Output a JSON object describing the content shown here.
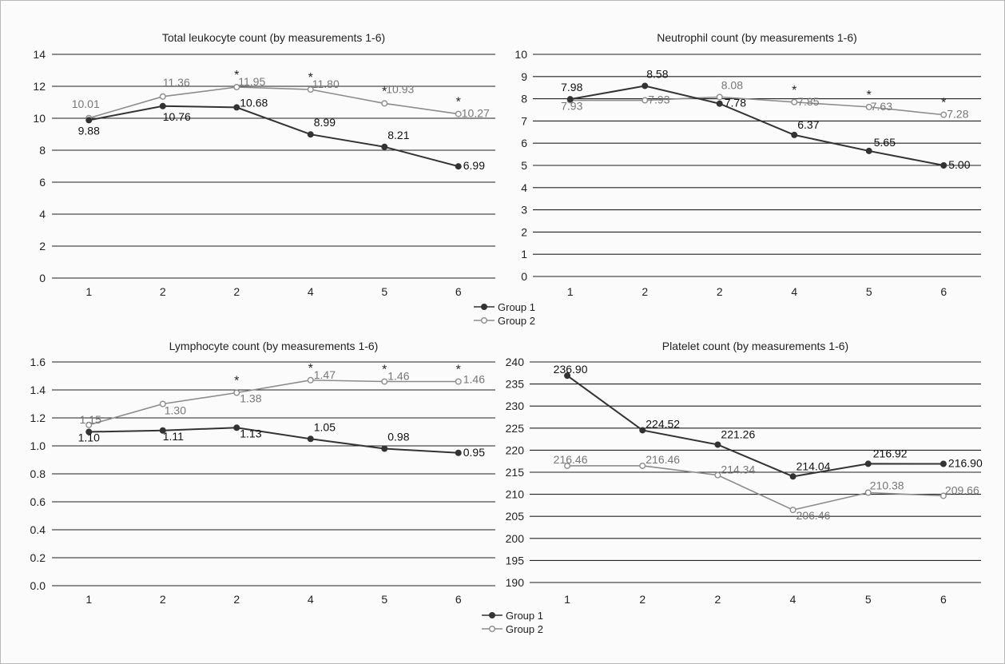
{
  "colors": {
    "group1": "#333333",
    "group2": "#8c8c8c",
    "grid": "#222222"
  },
  "legends": [
    {
      "entries": [
        "Group 1",
        "Group 2"
      ]
    },
    {
      "entries": [
        "Group 1",
        "Group 2"
      ]
    }
  ],
  "chart_data": [
    {
      "type": "line",
      "title": "Total leukocyte count (by measurements 1-6)",
      "categories": [
        "1",
        "2",
        "2",
        "4",
        "5",
        "6"
      ],
      "ylim": [
        0,
        14
      ],
      "yticks": [
        "0",
        "2",
        "4",
        "6",
        "8",
        "10",
        "12",
        "14"
      ],
      "grid": true,
      "series": [
        {
          "name": "Group 1",
          "values": [
            9.88,
            10.76,
            10.68,
            8.99,
            8.21,
            6.99
          ],
          "labels": [
            "9.88",
            "10.76",
            "10.68",
            "8.99",
            "8.21",
            "6.99"
          ]
        },
        {
          "name": "Group 2",
          "values": [
            10.01,
            11.36,
            11.95,
            11.8,
            10.93,
            10.27
          ],
          "labels": [
            "10.01",
            "11.36",
            "11.95",
            "11.80",
            "10.93",
            "10.27"
          ]
        }
      ],
      "significance": [
        false,
        false,
        true,
        true,
        true,
        true
      ]
    },
    {
      "type": "line",
      "title": "Neutrophil count (by measurements 1-6)",
      "categories": [
        "1",
        "2",
        "2",
        "4",
        "5",
        "6"
      ],
      "ylim": [
        0,
        10
      ],
      "yticks": [
        "0",
        "1",
        "2",
        "3",
        "4",
        "5",
        "6",
        "7",
        "8",
        "9",
        "10"
      ],
      "grid": true,
      "series": [
        {
          "name": "Group 1",
          "values": [
            7.98,
            8.58,
            7.78,
            6.37,
            5.65,
            5.0
          ],
          "labels": [
            "7.98",
            "8.58",
            "7.78",
            "6.37",
            "5.65",
            "5.00"
          ]
        },
        {
          "name": "Group 2",
          "values": [
            7.93,
            7.93,
            8.08,
            7.85,
            7.63,
            7.28
          ],
          "labels": [
            "7.93",
            "7.93",
            "8.08",
            "7.85",
            "7.63",
            "7.28"
          ]
        }
      ],
      "significance": [
        false,
        false,
        false,
        true,
        true,
        true
      ]
    },
    {
      "type": "line",
      "title": "Lymphocyte count (by measurements 1-6)",
      "categories": [
        "1",
        "2",
        "2",
        "4",
        "5",
        "6"
      ],
      "ylim": [
        0,
        1.6
      ],
      "yticks": [
        "0.0",
        "0.2",
        "0.4",
        "0.6",
        "0.8",
        "1.0",
        "1.2",
        "1.4",
        "1.6"
      ],
      "grid": true,
      "series": [
        {
          "name": "Group 1",
          "values": [
            1.1,
            1.11,
            1.13,
            1.05,
            0.98,
            0.95
          ],
          "labels": [
            "1.10",
            "1.11",
            "1.13",
            "1.05",
            "0.98",
            "0.95"
          ]
        },
        {
          "name": "Group 2",
          "values": [
            1.15,
            1.3,
            1.38,
            1.47,
            1.46,
            1.46
          ],
          "labels": [
            "1.15",
            "1.30",
            "1.38",
            "1.47",
            "1.46",
            "1.46"
          ]
        }
      ],
      "significance": [
        false,
        false,
        true,
        true,
        true,
        true
      ]
    },
    {
      "type": "line",
      "title": "Platelet count (by measurements 1-6)",
      "categories": [
        "1",
        "2",
        "2",
        "4",
        "5",
        "6"
      ],
      "ylim": [
        190,
        240
      ],
      "yticks": [
        "190",
        "195",
        "200",
        "205",
        "210",
        "215",
        "220",
        "225",
        "230",
        "235",
        "240"
      ],
      "grid": true,
      "series": [
        {
          "name": "Group 1",
          "values": [
            236.9,
            224.52,
            221.26,
            214.04,
            216.92,
            216.9
          ],
          "labels": [
            "236.90",
            "224.52",
            "221.26",
            "214.04",
            "216.92",
            "216.90"
          ]
        },
        {
          "name": "Group 2",
          "values": [
            216.46,
            216.46,
            214.34,
            206.46,
            210.38,
            209.66
          ],
          "labels": [
            "216.46",
            "216.46",
            "214.34",
            "206.46",
            "210.38",
            "209.66"
          ]
        }
      ],
      "significance": [
        false,
        false,
        false,
        false,
        false,
        false
      ]
    }
  ]
}
